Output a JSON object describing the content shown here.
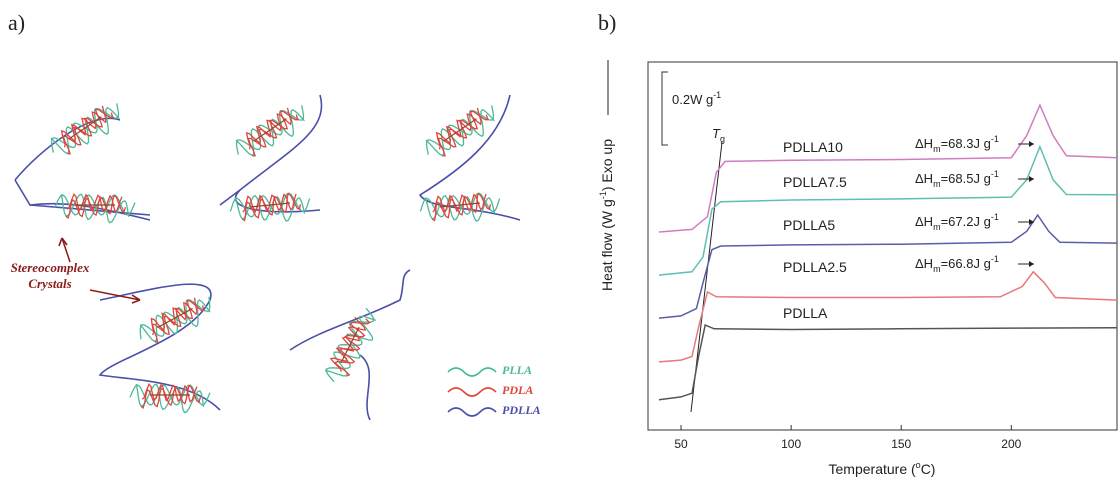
{
  "panel_a": {
    "label": "a)",
    "callout": [
      "Stereocomplex",
      "Crystals"
    ],
    "legend": [
      "PLLA",
      "PDLA",
      "PDLLA"
    ]
  },
  "panel_b_label": "b)",
  "chart_data": {
    "type": "line",
    "x_label": [
      "Temperature (",
      "o",
      "C)"
    ],
    "y_label": [
      "Heat flow (W g",
      "-1",
      ") Exo up"
    ],
    "scale_bar": [
      "0.2W g",
      "-1"
    ],
    "tg_label": [
      "T",
      "g"
    ],
    "xlim": [
      35,
      248
    ],
    "ylim": [
      0,
      1.0
    ],
    "xticks": [
      50,
      100,
      150,
      200
    ],
    "series": [
      {
        "name": "PDLLA10",
        "color": "#d07cc0",
        "enthalpy": [
          "ΔH",
          "m",
          "=68.3J g",
          "-1"
        ],
        "x": [
          40,
          55,
          62,
          66,
          70,
          100,
          150,
          200,
          207,
          213,
          219,
          225,
          248
        ],
        "values": [
          0.538,
          0.545,
          0.58,
          0.7,
          0.73,
          0.733,
          0.735,
          0.74,
          0.8,
          0.883,
          0.8,
          0.745,
          0.74
        ]
      },
      {
        "name": "PDLLA7.5",
        "color": "#5fbfb0",
        "enthalpy": [
          "ΔH",
          "m",
          "=68.5J g",
          "-1"
        ],
        "x": [
          40,
          55,
          60,
          64,
          68,
          100,
          150,
          200,
          207,
          213,
          219,
          225,
          248
        ],
        "values": [
          0.421,
          0.43,
          0.47,
          0.6,
          0.62,
          0.625,
          0.628,
          0.633,
          0.68,
          0.77,
          0.68,
          0.64,
          0.639
        ]
      },
      {
        "name": "PDLLA5",
        "color": "#5a5ea8",
        "enthalpy": [
          "ΔH",
          "m",
          "=67.2J g",
          "-1"
        ],
        "x": [
          40,
          50,
          57,
          60,
          64,
          68,
          100,
          150,
          200,
          207,
          212,
          217,
          222,
          248
        ],
        "values": [
          0.304,
          0.31,
          0.33,
          0.4,
          0.49,
          0.5,
          0.503,
          0.505,
          0.51,
          0.54,
          0.584,
          0.54,
          0.51,
          0.508
        ]
      },
      {
        "name": "PDLLA2.5",
        "color": "#e8787a",
        "enthalpy": [
          "ΔH",
          "m",
          "=66.8J g",
          "-1"
        ],
        "x": [
          40,
          50,
          55,
          58,
          62,
          66,
          100,
          150,
          195,
          205,
          210,
          215,
          220,
          248
        ],
        "values": [
          0.185,
          0.19,
          0.2,
          0.28,
          0.375,
          0.362,
          0.36,
          0.36,
          0.362,
          0.39,
          0.43,
          0.4,
          0.36,
          0.353
        ]
      },
      {
        "name": "PDLLA",
        "color": "#555555",
        "x": [
          40,
          50,
          55,
          58,
          61,
          65,
          100,
          150,
          200,
          248
        ],
        "values": [
          0.082,
          0.09,
          0.1,
          0.2,
          0.285,
          0.275,
          0.273,
          0.275,
          0.277,
          0.278
        ]
      }
    ]
  }
}
